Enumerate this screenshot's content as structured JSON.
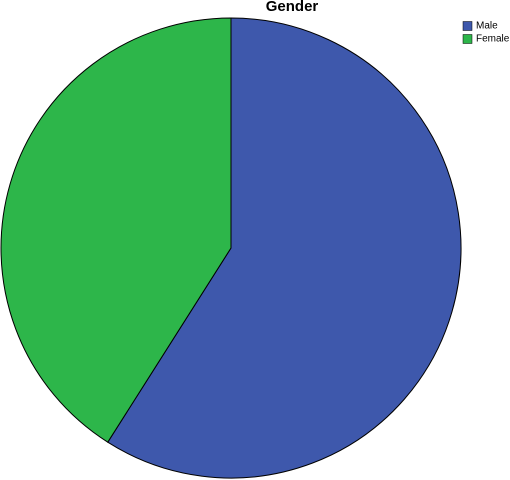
{
  "chart_data": {
    "type": "pie",
    "title": "Gender",
    "categories": [
      "Male",
      "Female"
    ],
    "values": [
      59,
      41
    ],
    "colors": [
      "#3e58ac",
      "#2db64a"
    ],
    "legend": "top-right"
  }
}
